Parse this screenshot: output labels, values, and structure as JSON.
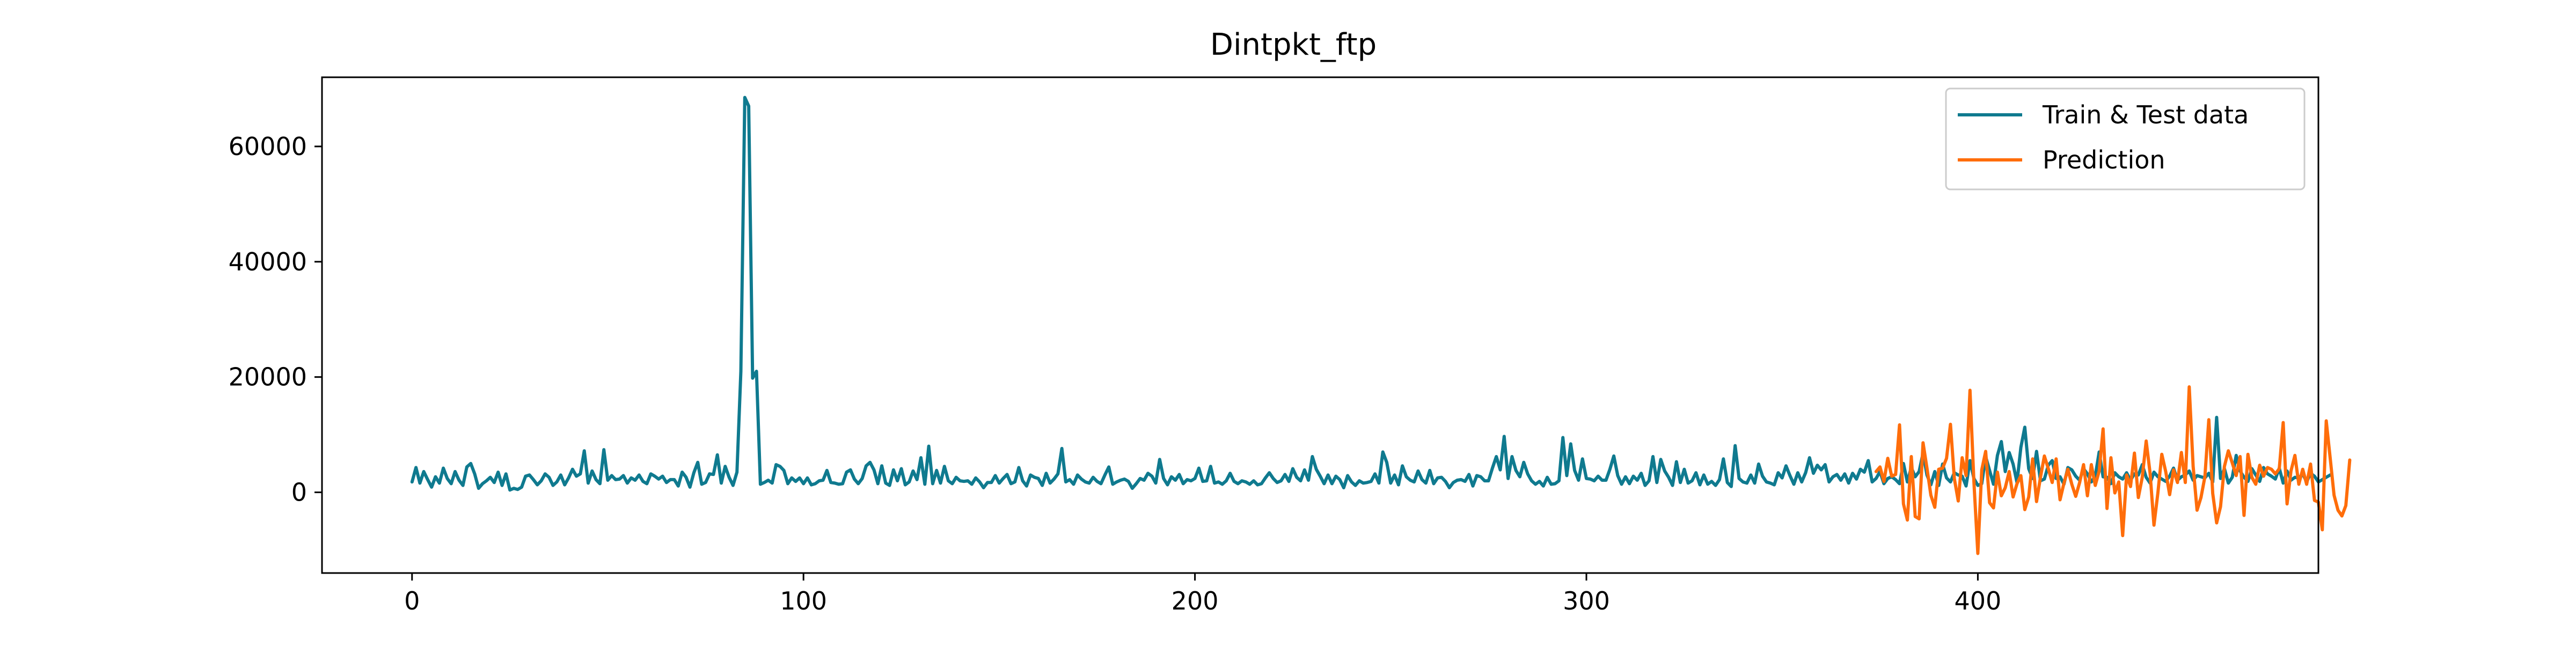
{
  "chart_data": {
    "type": "line",
    "title": "Dintpkt_ftp",
    "xlabel": "",
    "ylabel": "",
    "xlim": [
      -23,
      487
    ],
    "ylim": [
      -14000,
      72000
    ],
    "xticks": [
      0,
      100,
      200,
      300,
      400
    ],
    "yticks": [
      0,
      20000,
      40000,
      60000
    ],
    "xtick_labels": [
      "0",
      "100",
      "200",
      "300",
      "400"
    ],
    "ytick_labels": [
      "0",
      "20000",
      "40000",
      "60000"
    ],
    "grid": false,
    "legend_position": "top-right",
    "series": [
      {
        "name": "Train & Test data",
        "color": "#0f7a8f",
        "x_start": 0,
        "values": [
          1800,
          4300,
          1600,
          3600,
          2200,
          900,
          2700,
          1600,
          4200,
          2400,
          1500,
          3600,
          2100,
          1200,
          4400,
          5000,
          3200,
          700,
          1500,
          2000,
          2600,
          1700,
          3500,
          1200,
          3200,
          400,
          700,
          500,
          900,
          2800,
          3000,
          2200,
          1300,
          2000,
          3200,
          2600,
          1200,
          1800,
          3000,
          1300,
          2500,
          4000,
          2800,
          3200,
          7200,
          1600,
          3700,
          2200,
          1500,
          7400,
          2100,
          2900,
          2200,
          2300,
          2900,
          1600,
          2500,
          2100,
          3000,
          1900,
          1500,
          3200,
          2800,
          2300,
          2800,
          1700,
          2200,
          2200,
          1100,
          3500,
          2600,
          900,
          3400,
          5200,
          1400,
          1700,
          3200,
          3100,
          6500,
          1600,
          4500,
          2600,
          1200,
          3500,
          21000,
          68500,
          67000,
          19800,
          21000,
          1400,
          1700,
          2100,
          1600,
          4800,
          4500,
          3800,
          1500,
          2500,
          1900,
          2500,
          1500,
          2500,
          1300,
          1500,
          2000,
          2100,
          3800,
          1700,
          1600,
          1400,
          1500,
          3500,
          3900,
          2300,
          1500,
          2400,
          4600,
          5200,
          3900,
          1500,
          4600,
          1600,
          1200,
          3900,
          2000,
          4100,
          1300,
          1800,
          3700,
          2200,
          6000,
          1400,
          8000,
          1500,
          3800,
          1600,
          4500,
          2000,
          1500,
          2600,
          2000,
          1900,
          2000,
          1400,
          2500,
          1800,
          800,
          1700,
          1700,
          2900,
          1600,
          2400,
          3100,
          1500,
          1800,
          4300,
          2000,
          1100,
          3000,
          2600,
          2400,
          1200,
          3300,
          1600,
          2300,
          3200,
          7600,
          1800,
          2200,
          1400,
          3000,
          2300,
          1800,
          1600,
          2600,
          1900,
          1500,
          3000,
          4400,
          1400,
          1800,
          2100,
          2300,
          1900,
          700,
          1500,
          2400,
          2100,
          3300,
          2800,
          1600,
          5700,
          2400,
          1300,
          2700,
          2100,
          3100,
          1500,
          2200,
          2000,
          2400,
          4200,
          1900,
          2000,
          4500,
          1600,
          1800,
          1400,
          2000,
          3300,
          1900,
          1500,
          2000,
          1800,
          1400,
          2000,
          1300,
          1500,
          2500,
          3400,
          2400,
          1700,
          2000,
          3100,
          1900,
          4100,
          2600,
          2000,
          3900,
          2100,
          6200,
          4000,
          2800,
          1500,
          3000,
          1500,
          2800,
          2200,
          800,
          2900,
          1800,
          1200,
          2000,
          1600,
          1700,
          1900,
          3200,
          1600,
          7000,
          5200,
          1600,
          3000,
          1300,
          4600,
          2700,
          2100,
          1800,
          3700,
          2200,
          1600,
          3800,
          1500,
          2500,
          2600,
          1900,
          800,
          1700,
          2100,
          2200,
          1900,
          3100,
          1100,
          2900,
          2700,
          2000,
          2000,
          4200,
          6200,
          3900,
          9700,
          2400,
          6200,
          3800,
          2700,
          5200,
          3200,
          2000,
          1400,
          1900,
          1100,
          2600,
          1400,
          1500,
          2000,
          9500,
          2900,
          8400,
          3800,
          2100,
          5800,
          2400,
          2300,
          2000,
          2800,
          2100,
          2100,
          4000,
          6300,
          2900,
          1400,
          2700,
          1500,
          2800,
          2100,
          3300,
          1200,
          2000,
          6200,
          1700,
          5700,
          3700,
          2600,
          1200,
          5300,
          1700,
          4000,
          1600,
          2000,
          3400,
          1300,
          3000,
          1400,
          1900,
          1200,
          2200,
          5800,
          1700,
          1000,
          8100,
          2400,
          1800,
          1600,
          3000,
          1600,
          4900,
          2800,
          1800,
          1600,
          1300,
          3400,
          2500,
          4600,
          2900,
          1400,
          3400,
          1800,
          3400,
          6000,
          3300,
          4700,
          3900,
          4800,
          1800,
          2700,
          3100,
          2100,
          3200,
          1600,
          3300,
          2300,
          4000,
          3500,
          5500,
          1800,
          2400,
          3600,
          1500,
          2400,
          2700,
          2200,
          1500,
          5000,
          1800,
          4300,
          2700,
          3600,
          6800,
          3000,
          1300,
          3600,
          1200,
          4900,
          2500,
          1800,
          3400,
          3000,
          2800,
          1100,
          5500,
          2400,
          1200,
          1500,
          6200,
          3800,
          1400,
          6400,
          8800,
          3600,
          6900,
          4900,
          1700,
          7800,
          11300,
          4100,
          2400,
          7100,
          2000,
          2300,
          4700,
          5500,
          2400,
          2700,
          1400,
          4300,
          3900,
          2800,
          2100,
          4100,
          3200,
          1800,
          2800,
          7000,
          2700,
          2600,
          1500,
          3400,
          2700,
          2300,
          3400,
          2100,
          3200,
          3000,
          4800,
          2600,
          1600,
          3500,
          2700,
          2300,
          1900,
          2800,
          4200,
          2100,
          2700,
          3000,
          3700,
          2100,
          2900,
          2700,
          2500,
          3300,
          1800,
          13000,
          2400,
          4100,
          1600,
          2600,
          6400,
          3700,
          2600,
          1900,
          4100,
          3000,
          1900,
          4300,
          3200,
          2800,
          2300,
          4200,
          1600,
          3700,
          2100,
          2600,
          2500,
          3200,
          1800,
          3300,
          2800,
          1800,
          2200,
          2600,
          3000
        ]
      },
      {
        "name": "Prediction",
        "color": "#ff6d0a",
        "x_start": 374,
        "values": [
          3600,
          4400,
          1900,
          5900,
          2800,
          3100,
          11700,
          -2000,
          -4800,
          6200,
          -4200,
          -4600,
          8600,
          4200,
          -500,
          -2600,
          4000,
          4200,
          5900,
          11800,
          2400,
          -1500,
          6000,
          2900,
          17700,
          1800,
          -10600,
          3900,
          7100,
          -1800,
          -2700,
          3500,
          -600,
          800,
          3600,
          -800,
          1500,
          2900,
          -3000,
          -800,
          5800,
          -1600,
          2600,
          6300,
          4100,
          1700,
          5800,
          -1300,
          1600,
          4000,
          1400,
          -700,
          1700,
          4800,
          -600,
          4800,
          1200,
          3700,
          11000,
          -2800,
          6000,
          -100,
          1800,
          -7500,
          3000,
          1000,
          6800,
          -900,
          2600,
          8900,
          3300,
          -5700,
          -100,
          6600,
          3600,
          -400,
          3900,
          1700,
          6900,
          1700,
          18300,
          4500,
          -3100,
          -900,
          2700,
          12600,
          -200,
          -5300,
          -2500,
          4500,
          7200,
          5100,
          2900,
          6200,
          -4000,
          6600,
          2600,
          1400,
          4700,
          2800,
          4300,
          4000,
          3200,
          4100,
          12100,
          -2000,
          3700,
          6400,
          1400,
          4000,
          1400,
          4900,
          -1400,
          -1700,
          -6500,
          12400,
          6000,
          -500,
          -3100,
          -4100,
          -2300,
          5600
        ]
      }
    ]
  }
}
